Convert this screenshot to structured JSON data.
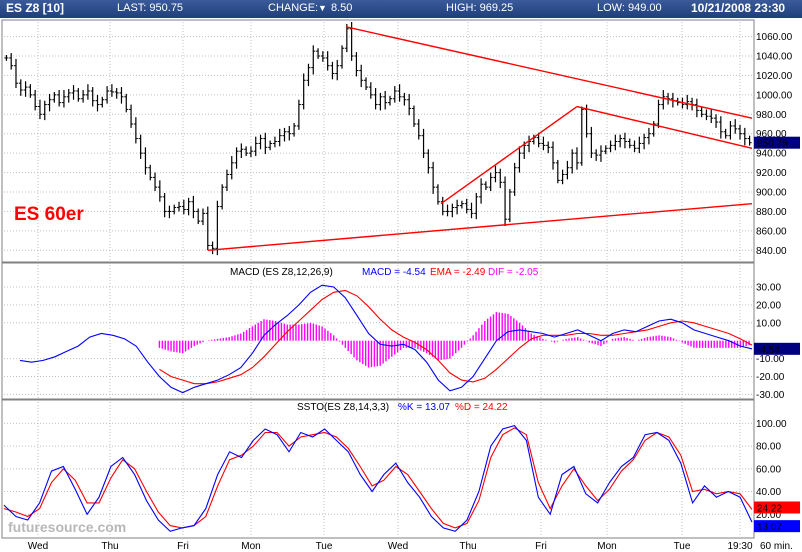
{
  "header": {
    "symbol": "ES Z8 [10]",
    "last": "LAST: 950.75",
    "change_label": "CHANGE:",
    "change_arrow": "▼",
    "change_value": "8.50",
    "high": "HIGH: 969.25",
    "low": "LOW: 949.00",
    "datetime": "10/21/2008 23:30"
  },
  "colors": {
    "price_bars": "#000000",
    "trendlines": "#ff0000",
    "macd_line": "#0000ff",
    "ema_line": "#ff0000",
    "histogram": "#ff00ff",
    "k_line": "#0000ff",
    "d_line": "#ff0000",
    "price_tag_bg": "#000080",
    "grid": "#c0c0c0"
  },
  "annotation": "ES 60er",
  "watermark": "futuresource.com",
  "chart_data": [
    {
      "type": "candlestick",
      "name": "ES Z8 [10]",
      "x_labels": [
        "Wed",
        "Thu",
        "Fri",
        "Mon",
        "Tue",
        "Wed",
        "Thu",
        "Fri",
        "Mon",
        "Tue",
        "19:30"
      ],
      "x_unit": "60 min.",
      "ylim": [
        830,
        1075
      ],
      "yticks": [
        840,
        860,
        880,
        900,
        920,
        940,
        960,
        980,
        1000,
        1020,
        1040,
        1060
      ],
      "y_tick_labels": [
        "840.00",
        "860.00",
        "880.00",
        "900.00",
        "920.00",
        "940.00",
        "960.00",
        "980.00",
        "1000.00",
        "1020.00",
        "1040.00",
        "1060.00"
      ],
      "last_value": 950.75,
      "last_label": "950.75",
      "close_path": [
        1038,
        1030,
        1012,
        1005,
        1008,
        1000,
        988,
        980,
        990,
        995,
        1000,
        992,
        998,
        1002,
        1004,
        996,
        1000,
        1004,
        994,
        990,
        995,
        1004,
        1003,
        1002,
        998,
        985,
        970,
        955,
        940,
        925,
        915,
        905,
        895,
        880,
        880,
        884,
        885,
        882,
        890,
        880,
        870,
        878,
        845,
        842,
        885,
        905,
        918,
        930,
        942,
        944,
        940,
        942,
        950,
        955,
        946,
        950,
        952,
        958,
        962,
        960,
        968,
        990,
        1015,
        1028,
        1045,
        1040,
        1038,
        1030,
        1022,
        1030,
        1048,
        1068,
        1040,
        1025,
        1015,
        1008,
        1000,
        990,
        998,
        992,
        996,
        1004,
        998,
        995,
        986,
        970,
        958,
        940,
        925,
        905,
        890,
        880,
        880,
        884,
        886,
        888,
        882,
        878,
        895,
        908,
        905,
        915,
        920,
        910,
        872,
        900,
        925,
        940,
        948,
        952,
        956,
        950,
        948,
        946,
        930,
        912,
        918,
        925,
        940,
        930,
        985,
        960,
        940,
        938,
        942,
        945,
        948,
        952,
        955,
        952,
        948,
        945,
        950,
        956,
        960,
        970,
        990,
        998,
        996,
        994,
        992,
        990,
        993,
        990,
        984,
        980,
        978,
        976,
        972,
        962,
        958,
        968,
        965,
        960,
        955,
        950.75
      ],
      "trendlines": [
        {
          "from": [
            "Fri",
            840
          ],
          "to": [
            "19:30",
            888
          ]
        },
        {
          "from": [
            "Tue",
            1070
          ],
          "to": [
            "19:30",
            976
          ]
        },
        {
          "from": [
            "Fri",
            888
          ],
          "to": [
            "Fri",
            988
          ]
        },
        {
          "from": [
            "Fri",
            988
          ],
          "to": [
            "19:30",
            945
          ]
        }
      ]
    },
    {
      "type": "line",
      "title": "MACD (ES Z8,12,26,9)",
      "legend_macd": "MACD = -4.54",
      "legend_ema": "EMA = -2.49",
      "legend_dif": "DIF = -2.05",
      "ylim": [
        -32,
        35
      ],
      "yticks": [
        -30,
        -20,
        -10,
        10,
        20,
        30
      ],
      "y_tick_labels": [
        "-30.00",
        "-20.00",
        "-10.00",
        "10.00",
        "20.00",
        "30.00"
      ],
      "last_value": -4.54,
      "last_label": "-4.54",
      "series": [
        {
          "name": "MACD",
          "values": [
            -11,
            -12,
            -11,
            -9,
            -6,
            -3,
            2,
            4,
            3,
            1,
            -3,
            -12,
            -20,
            -26,
            -29,
            -26,
            -24,
            -22,
            -19,
            -15,
            -7,
            3,
            9,
            14,
            20,
            27,
            31,
            30,
            24,
            14,
            4,
            -2,
            -3,
            -2,
            -5,
            -12,
            -22,
            -28,
            -26,
            -20,
            -10,
            0,
            5,
            6,
            5,
            4,
            2,
            4,
            6,
            3,
            0,
            4,
            6,
            5,
            8,
            11,
            12,
            10,
            6,
            4,
            2,
            0,
            -3,
            -4.54
          ]
        },
        {
          "name": "EMA",
          "values": [
            null,
            null,
            null,
            null,
            null,
            null,
            null,
            null,
            null,
            null,
            null,
            null,
            -16,
            -20,
            -22,
            -24,
            -24,
            -23,
            -21,
            -19,
            -15,
            -9,
            -2,
            5,
            11,
            17,
            23,
            27,
            28,
            25,
            19,
            12,
            6,
            2,
            -1,
            -5,
            -11,
            -18,
            -22,
            -23,
            -21,
            -16,
            -10,
            -4,
            1,
            3,
            3,
            3,
            4,
            4,
            3,
            3,
            4,
            5,
            6,
            8,
            10,
            11,
            10,
            8,
            6,
            4,
            1,
            -2.49
          ]
        },
        {
          "name": "DIF",
          "values": [
            null,
            null,
            null,
            null,
            null,
            null,
            null,
            null,
            null,
            null,
            null,
            null,
            -4,
            -6,
            -7,
            -3,
            0,
            1,
            2,
            4,
            8,
            12,
            11,
            9,
            9,
            10,
            8,
            3,
            -4,
            -11,
            -15,
            -14,
            -9,
            -4,
            -4,
            -7,
            -11,
            -10,
            -4,
            3,
            11,
            16,
            15,
            10,
            4,
            1,
            -1,
            1,
            2,
            -1,
            -3,
            1,
            2,
            0,
            2,
            3,
            2,
            -1,
            -4,
            -4,
            -4,
            -4,
            -4,
            -2.05
          ]
        }
      ]
    },
    {
      "type": "line",
      "title": "SSTO(ES Z8,14,3,3)",
      "legend_k": "%K = 13.07",
      "legend_d": "%D = 24.22",
      "ylim": [
        0,
        110
      ],
      "yticks": [
        20,
        40,
        60,
        80,
        100
      ],
      "y_tick_labels": [
        "20.00",
        "40.00",
        "60.00",
        "80.00",
        "100.00"
      ],
      "last_k_label": "13.07",
      "last_d_label": "24.22",
      "series": [
        {
          "name": "%K",
          "values": [
            28,
            18,
            15,
            30,
            58,
            62,
            42,
            20,
            35,
            62,
            70,
            55,
            32,
            15,
            5,
            8,
            10,
            25,
            55,
            75,
            70,
            85,
            95,
            90,
            75,
            92,
            88,
            95,
            85,
            75,
            55,
            40,
            55,
            65,
            48,
            35,
            18,
            8,
            5,
            15,
            40,
            80,
            95,
            98,
            85,
            35,
            20,
            55,
            62,
            38,
            30,
            48,
            62,
            70,
            90,
            92,
            85,
            65,
            30,
            45,
            35,
            40,
            35,
            13.07
          ]
        },
        {
          "name": "%D",
          "values": [
            25,
            22,
            18,
            25,
            48,
            60,
            50,
            30,
            30,
            52,
            68,
            60,
            40,
            22,
            10,
            8,
            10,
            18,
            45,
            68,
            72,
            80,
            92,
            92,
            80,
            88,
            90,
            92,
            88,
            78,
            62,
            45,
            50,
            62,
            55,
            40,
            25,
            12,
            8,
            12,
            32,
            70,
            90,
            96,
            90,
            48,
            25,
            45,
            60,
            45,
            32,
            42,
            58,
            68,
            85,
            92,
            88,
            72,
            40,
            42,
            38,
            40,
            38,
            24.22
          ]
        }
      ]
    }
  ]
}
